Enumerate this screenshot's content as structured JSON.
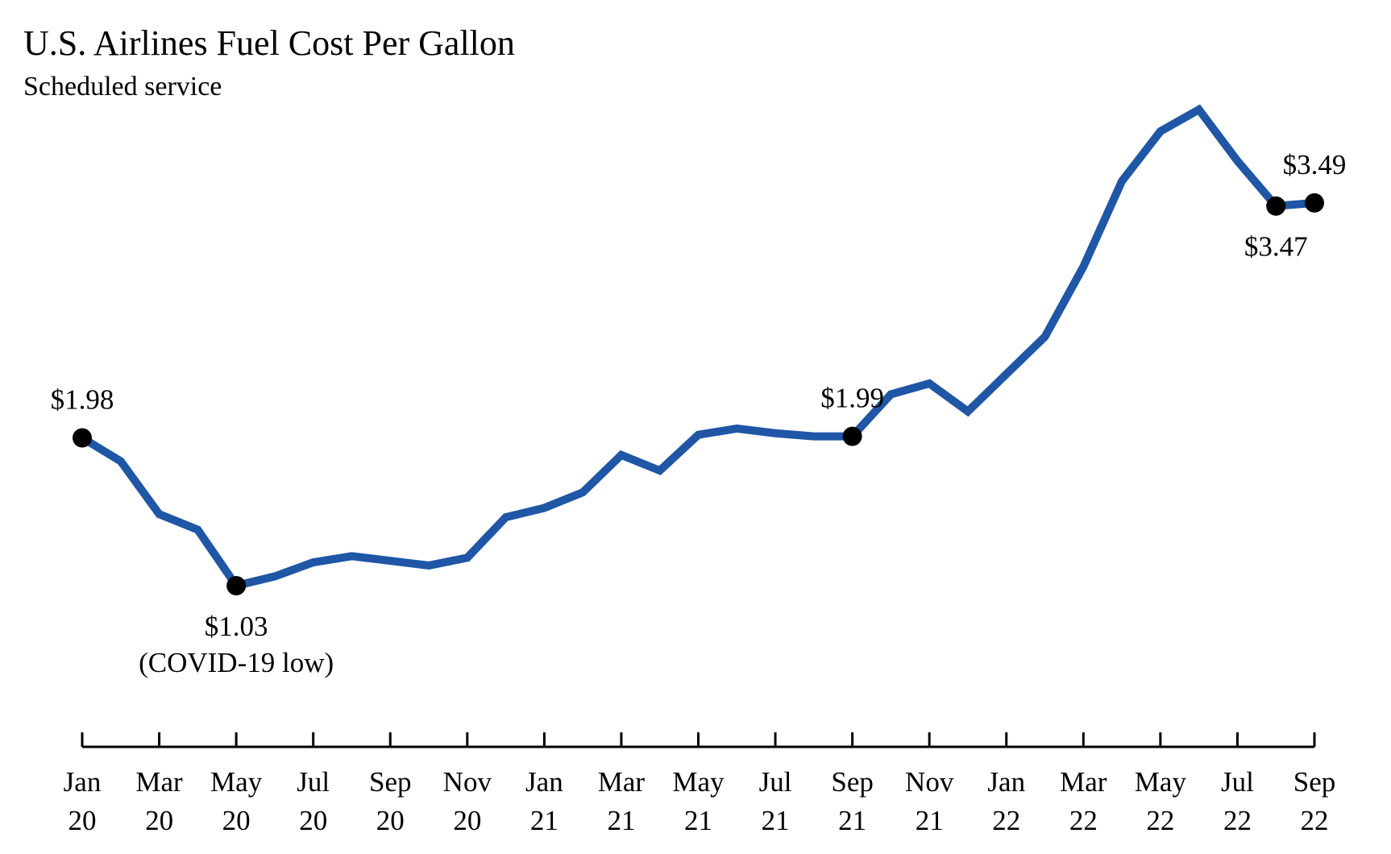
{
  "chart_data": {
    "type": "line",
    "title": "U.S. Airlines Fuel Cost Per Gallon",
    "subtitle": "Scheduled service",
    "categories": [
      "Jan 20",
      null,
      "Mar 20",
      null,
      "May 20",
      null,
      "Jul 20",
      null,
      "Sep 20",
      null,
      "Nov 20",
      null,
      "Jan 21",
      null,
      "Mar 21",
      null,
      "May 21",
      null,
      "Jul 21",
      null,
      "Sep 21",
      null,
      "Nov 21",
      null,
      "Jan 22",
      null,
      "Mar 22",
      null,
      "May 22",
      null,
      "Jul 22",
      null,
      "Sep 22"
    ],
    "series": [
      {
        "color": "#1f56a5",
        "values": [
          1.98,
          1.83,
          1.49,
          1.39,
          1.03,
          1.09,
          1.18,
          1.22,
          1.19,
          1.16,
          1.21,
          1.47,
          1.53,
          1.63,
          1.87,
          1.77,
          2.0,
          2.04,
          2.01,
          1.99,
          1.99,
          2.26,
          2.33,
          2.15,
          2.39,
          2.63,
          3.08,
          3.63,
          3.95,
          4.09,
          3.76,
          3.47,
          3.49
        ],
        "value_labels": [
          "$1.98",
          null,
          null,
          null,
          "$1.03",
          null,
          null,
          null,
          null,
          null,
          null,
          null,
          null,
          null,
          null,
          null,
          null,
          null,
          null,
          null,
          "$1.99",
          null,
          null,
          null,
          null,
          null,
          null,
          null,
          null,
          null,
          null,
          "$3.47",
          "$3.49"
        ]
      }
    ],
    "annotations": [
      {
        "index": 4,
        "text": "(COVID-19 low)"
      }
    ]
  }
}
